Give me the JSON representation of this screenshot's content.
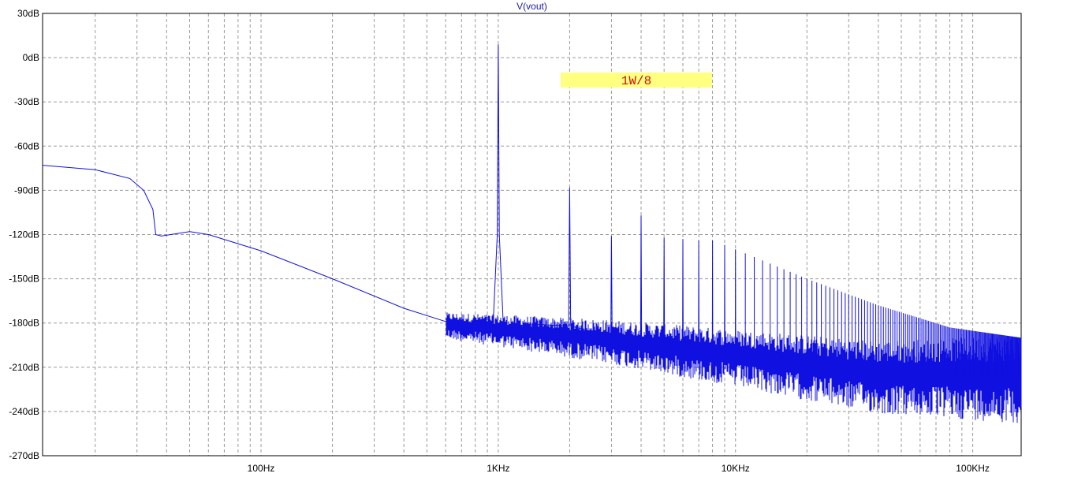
{
  "chart_data": {
    "type": "line",
    "title": "V(vout)",
    "xlabel": "",
    "ylabel": "",
    "x_scale": "log",
    "xlim": [
      12,
      160000
    ],
    "ylim": [
      -270,
      30
    ],
    "grid": true,
    "y_ticks": [
      {
        "value": 30,
        "label": "30dB"
      },
      {
        "value": 0,
        "label": "0dB"
      },
      {
        "value": -30,
        "label": "-30dB"
      },
      {
        "value": -60,
        "label": "-60dB"
      },
      {
        "value": -90,
        "label": "-90dB"
      },
      {
        "value": -120,
        "label": "-120dB"
      },
      {
        "value": -150,
        "label": "-150dB"
      },
      {
        "value": -180,
        "label": "-180dB"
      },
      {
        "value": -210,
        "label": "-210dB"
      },
      {
        "value": -240,
        "label": "-240dB"
      },
      {
        "value": -270,
        "label": "-270dB"
      }
    ],
    "x_ticks": [
      {
        "value": 100,
        "label": "100Hz"
      },
      {
        "value": 1000,
        "label": "1KHz"
      },
      {
        "value": 10000,
        "label": "10KHz"
      },
      {
        "value": 100000,
        "label": "100KHz"
      }
    ],
    "series": [
      {
        "color": "#1010e0",
        "points": [
          [
            12,
            -73
          ],
          [
            20,
            -76
          ],
          [
            28,
            -82
          ],
          [
            32,
            -90
          ],
          [
            35,
            -103
          ],
          [
            36,
            -120
          ],
          [
            38,
            -121
          ],
          [
            50,
            -118
          ],
          [
            60,
            -120
          ],
          [
            100,
            -131
          ],
          [
            200,
            -150
          ],
          [
            400,
            -170
          ],
          [
            600,
            -179
          ],
          [
            800,
            -182
          ],
          [
            950,
            -183
          ],
          [
            990,
            -120
          ],
          [
            1000,
            9
          ],
          [
            1010,
            -120
          ],
          [
            1050,
            -182
          ],
          [
            1500,
            -181
          ],
          [
            1980,
            -182
          ],
          [
            2000,
            -88
          ],
          [
            2020,
            -182
          ],
          [
            2500,
            -186
          ],
          [
            2980,
            -190
          ],
          [
            3000,
            -121
          ],
          [
            3020,
            -190
          ],
          [
            3500,
            -192
          ],
          [
            3980,
            -193
          ],
          [
            4000,
            -107
          ],
          [
            4020,
            -193
          ],
          [
            4500,
            -195
          ],
          [
            4980,
            -197
          ],
          [
            5000,
            -122
          ],
          [
            5020,
            -197
          ],
          [
            5980,
            -199
          ],
          [
            6000,
            -123
          ],
          [
            6020,
            -199
          ],
          [
            6980,
            -201
          ],
          [
            7000,
            -124
          ],
          [
            7020,
            -201
          ],
          [
            7980,
            -202
          ],
          [
            8000,
            -124
          ],
          [
            8020,
            -202
          ],
          [
            8980,
            -203
          ],
          [
            9000,
            -127
          ],
          [
            9020,
            -203
          ],
          [
            9980,
            -204
          ],
          [
            10000,
            -130
          ],
          [
            10020,
            -204
          ],
          [
            20000,
            -210
          ],
          [
            40000,
            -215
          ],
          [
            80000,
            -220
          ],
          [
            160000,
            -218
          ]
        ]
      }
    ],
    "harmonics": {
      "fundamental_hz": 1000,
      "count": 160,
      "levels_db": [
        {
          "n": 2,
          "db": -88
        },
        {
          "n": 3,
          "db": -121
        },
        {
          "n": 4,
          "db": -107
        },
        {
          "n": 5,
          "db": -122
        },
        {
          "n": 6,
          "db": -123
        },
        {
          "n": 7,
          "db": -124
        },
        {
          "n": 8,
          "db": -124
        },
        {
          "n": 9,
          "db": -127
        },
        {
          "n": 10,
          "db": -130
        },
        {
          "n": 20,
          "db": -150
        },
        {
          "n": 40,
          "db": -168
        },
        {
          "n": 80,
          "db": -183
        },
        {
          "n": 160,
          "db": -190
        }
      ]
    },
    "noise_floor_db": [
      {
        "hz": 600,
        "db": -180
      },
      {
        "hz": 1000,
        "db": -183
      },
      {
        "hz": 3000,
        "db": -190
      },
      {
        "hz": 10000,
        "db": -200
      },
      {
        "hz": 40000,
        "db": -212
      },
      {
        "hz": 160000,
        "db": -212
      }
    ],
    "annotations": [
      {
        "text": "1W/8",
        "background": "#ffff80",
        "color": "#cc1010"
      }
    ]
  }
}
